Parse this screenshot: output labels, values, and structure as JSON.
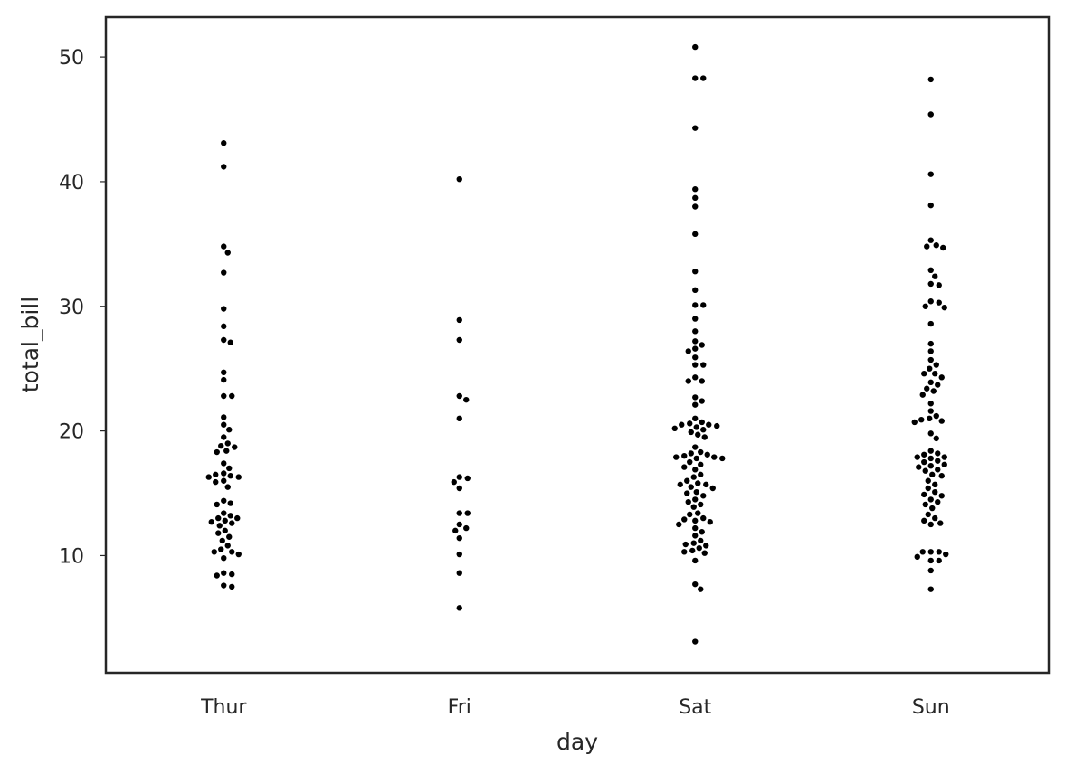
{
  "chart_data": {
    "type": "scatter",
    "subtype": "swarm",
    "xlabel": "day",
    "ylabel": "total_bill",
    "categories": [
      "Thur",
      "Fri",
      "Sat",
      "Sun"
    ],
    "ylim": [
      0.6,
      53.2
    ],
    "yticks": [
      10,
      20,
      30,
      40,
      50
    ],
    "grid": false,
    "legend": "none",
    "point_color": "#000000",
    "point_edge_color": "#ffffff",
    "series": [
      {
        "values": [
          43.1,
          41.2,
          34.8,
          34.3,
          32.7,
          29.8,
          28.4,
          27.3,
          27.1,
          24.7,
          24.1,
          22.8,
          22.8,
          21.1,
          20.5,
          20.1,
          19.5,
          19.0,
          18.8,
          18.7,
          18.4,
          18.3,
          17.4,
          17.0,
          16.6,
          16.5,
          16.4,
          16.3,
          16.3,
          16.0,
          15.9,
          15.5,
          14.4,
          14.2,
          14.1,
          13.4,
          13.2,
          13.0,
          13.0,
          12.8,
          12.7,
          12.6,
          12.4,
          12.0,
          11.8,
          11.5,
          11.2,
          10.8,
          10.5,
          10.3,
          10.3,
          10.1,
          9.8,
          8.6,
          8.5,
          8.4,
          7.6,
          7.5
        ]
      },
      {
        "values": [
          40.2,
          28.9,
          27.3,
          22.8,
          22.5,
          21.0,
          16.3,
          16.2,
          15.9,
          15.4,
          13.4,
          13.4,
          12.5,
          12.2,
          12.0,
          11.4,
          10.1,
          8.6,
          5.8
        ]
      },
      {
        "values": [
          50.8,
          48.3,
          48.3,
          44.3,
          39.4,
          38.7,
          38.0,
          35.8,
          32.8,
          31.3,
          30.1,
          30.1,
          29.0,
          28.0,
          27.2,
          26.9,
          26.6,
          26.4,
          25.9,
          25.3,
          25.3,
          24.3,
          24.0,
          24.0,
          22.7,
          22.4,
          22.1,
          21.0,
          20.7,
          20.6,
          20.5,
          20.5,
          20.4,
          20.3,
          20.2,
          20.1,
          19.9,
          19.7,
          19.5,
          18.7,
          18.3,
          18.2,
          18.1,
          18.0,
          17.9,
          17.9,
          17.8,
          17.8,
          17.5,
          17.3,
          17.1,
          16.9,
          16.5,
          16.3,
          16.0,
          15.8,
          15.7,
          15.7,
          15.5,
          15.4,
          15.1,
          15.0,
          14.8,
          14.5,
          14.3,
          14.1,
          13.9,
          13.4,
          13.3,
          13.0,
          12.9,
          12.8,
          12.7,
          12.5,
          12.2,
          11.9,
          11.6,
          11.2,
          11.0,
          10.9,
          10.8,
          10.6,
          10.4,
          10.3,
          10.2,
          9.6,
          7.7,
          7.3,
          3.1
        ]
      },
      {
        "values": [
          48.2,
          45.4,
          40.6,
          38.1,
          35.3,
          34.9,
          34.8,
          34.7,
          32.9,
          32.4,
          31.8,
          31.7,
          30.4,
          30.3,
          30.0,
          29.9,
          28.6,
          27.0,
          26.4,
          25.7,
          25.3,
          25.0,
          24.6,
          24.6,
          24.3,
          23.9,
          23.7,
          23.4,
          23.2,
          22.9,
          22.2,
          21.6,
          21.2,
          21.0,
          20.9,
          20.8,
          20.7,
          19.8,
          19.4,
          18.4,
          18.2,
          18.1,
          17.9,
          17.9,
          17.8,
          17.6,
          17.5,
          17.3,
          17.2,
          17.1,
          16.9,
          16.8,
          16.5,
          16.4,
          16.0,
          15.7,
          15.4,
          15.1,
          14.9,
          14.8,
          14.5,
          14.3,
          14.1,
          13.8,
          13.3,
          13.0,
          12.8,
          12.6,
          12.5,
          10.3,
          10.3,
          10.3,
          10.1,
          9.9,
          9.6,
          9.6,
          8.8,
          7.3
        ]
      }
    ]
  }
}
